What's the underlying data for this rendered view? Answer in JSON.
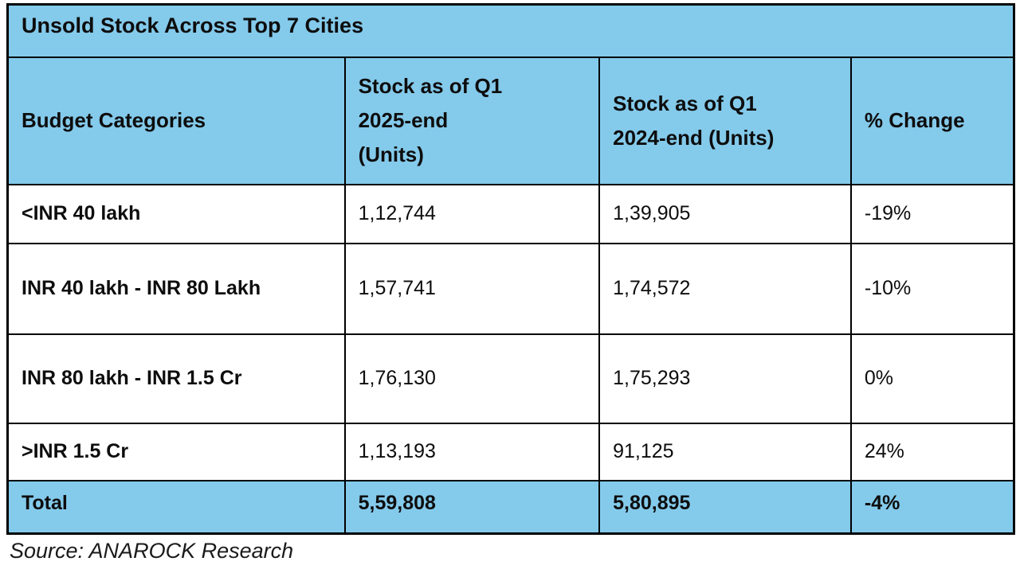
{
  "colors": {
    "header_fill": "#84caeb",
    "border": "#000000",
    "text": "#0d0d0d",
    "row_fill": "#ffffff"
  },
  "table": {
    "title": "Unsold Stock Across Top 7 Cities",
    "columns": [
      {
        "label": "Budget Categories",
        "lines": [
          "Budget Categories"
        ]
      },
      {
        "label": "Stock as of Q1 2025-end (Units)",
        "lines": [
          "Stock as of Q1",
          "2025-end",
          "(Units)"
        ]
      },
      {
        "label": "Stock as of Q1 2024-end (Units)",
        "lines": [
          "Stock as of Q1",
          "2024-end (Units)"
        ]
      },
      {
        "label": "% Change",
        "lines": [
          "% Change"
        ]
      }
    ],
    "rows": [
      {
        "category": "<INR 40 lakh",
        "q1_2025": "1,12,744",
        "q1_2024": "1,39,905",
        "pct_change": "-19%"
      },
      {
        "category": "INR 40 lakh - INR 80 Lakh",
        "q1_2025": "1,57,741",
        "q1_2024": "1,74,572",
        "pct_change": "-10%"
      },
      {
        "category": "INR 80 lakh - INR 1.5 Cr",
        "q1_2025": "1,76,130",
        "q1_2024": "1,75,293",
        "pct_change": "0%"
      },
      {
        "category": ">INR 1.5 Cr",
        "q1_2025": "1,13,193",
        "q1_2024": "91,125",
        "pct_change": "24%"
      }
    ],
    "total": {
      "category": "Total",
      "q1_2025": "5,59,808",
      "q1_2024": "5,80,895",
      "pct_change": "-4%"
    },
    "source": "Source: ANAROCK Research"
  },
  "chart_data": {
    "type": "table",
    "title": "Unsold Stock Across Top 7 Cities",
    "columns": [
      "Budget Categories",
      "Stock as of Q1 2025-end (Units)",
      "Stock as of Q1 2024-end (Units)",
      "% Change"
    ],
    "rows": [
      [
        "<INR 40 lakh",
        "1,12,744",
        "1,39,905",
        "-19%"
      ],
      [
        "INR 40 lakh - INR 80 Lakh",
        "1,57,741",
        "1,74,572",
        "-10%"
      ],
      [
        "INR 80 lakh - INR 1.5 Cr",
        "1,76,130",
        "1,75,293",
        "0%"
      ],
      [
        ">INR 1.5 Cr",
        "1,13,193",
        "91,125",
        "24%"
      ]
    ],
    "total_row": [
      "Total",
      "5,59,808",
      "5,80,895",
      "-4%"
    ],
    "numeric_rows": [
      {
        "category": "<INR 40 lakh",
        "stock_q1_2025": 112744,
        "stock_q1_2024": 139905,
        "pct_change": -19
      },
      {
        "category": "INR 40 lakh - INR 80 Lakh",
        "stock_q1_2025": 157741,
        "stock_q1_2024": 174572,
        "pct_change": -10
      },
      {
        "category": "INR 80 lakh - INR 1.5 Cr",
        "stock_q1_2025": 176130,
        "stock_q1_2024": 175293,
        "pct_change": 0
      },
      {
        "category": ">INR 1.5 Cr",
        "stock_q1_2025": 113193,
        "stock_q1_2024": 91125,
        "pct_change": 24
      },
      {
        "category": "Total",
        "stock_q1_2025": 559808,
        "stock_q1_2024": 580895,
        "pct_change": -4
      }
    ],
    "source": "Source: ANAROCK Research"
  }
}
